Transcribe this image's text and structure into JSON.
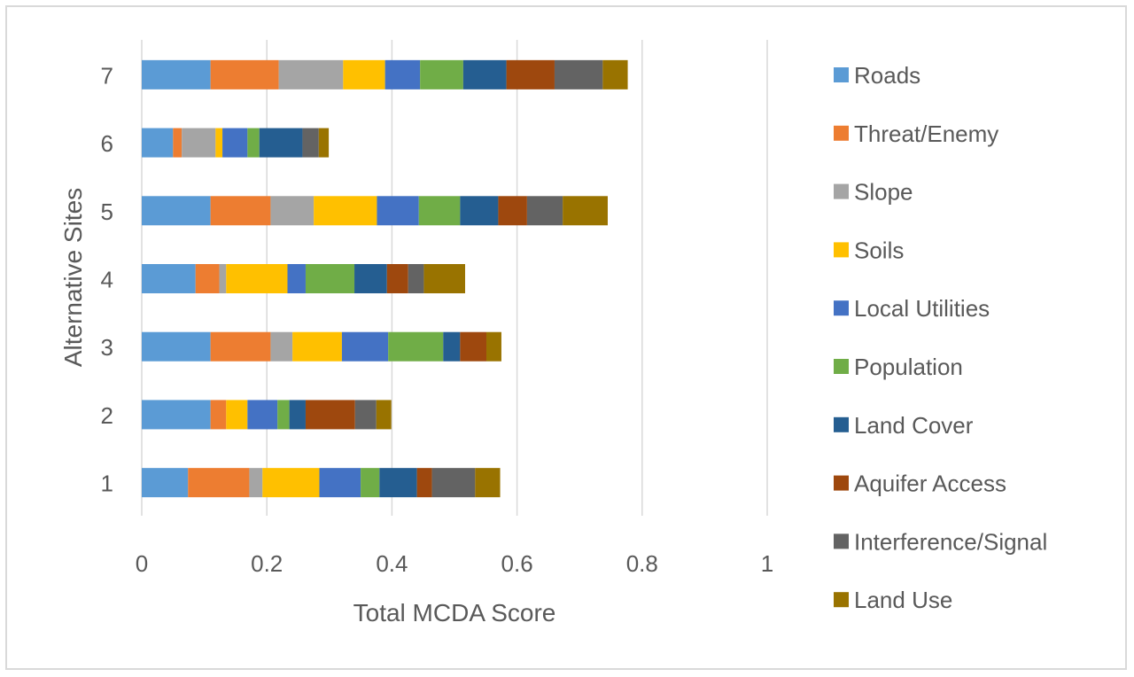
{
  "chart_data": {
    "type": "bar",
    "orientation": "horizontal",
    "stacked": true,
    "title": "",
    "xlabel": "Total MCDA Score",
    "ylabel": "Alternative Sites",
    "xlim": [
      0,
      1
    ],
    "xticks": [
      "0",
      "0.2",
      "0.4",
      "0.6",
      "0.8",
      "1"
    ],
    "grid": true,
    "legend_position": "right",
    "categories": [
      "1",
      "2",
      "3",
      "4",
      "5",
      "6",
      "7"
    ],
    "series": [
      {
        "name": "Roads",
        "color": "#5B9BD5",
        "values": [
          0.074,
          0.11,
          0.11,
          0.086,
          0.11,
          0.05,
          0.11
        ]
      },
      {
        "name": "Threat/Enemy",
        "color": "#ED7D31",
        "values": [
          0.098,
          0.025,
          0.096,
          0.038,
          0.096,
          0.014,
          0.109
        ]
      },
      {
        "name": "Slope",
        "color": "#A5A5A5",
        "values": [
          0.021,
          0.0,
          0.035,
          0.011,
          0.069,
          0.054,
          0.103
        ]
      },
      {
        "name": "Soils",
        "color": "#FFC000",
        "values": [
          0.091,
          0.034,
          0.079,
          0.098,
          0.101,
          0.011,
          0.067
        ]
      },
      {
        "name": "Local Utilities",
        "color": "#4472C4",
        "values": [
          0.066,
          0.048,
          0.074,
          0.029,
          0.067,
          0.04,
          0.056
        ]
      },
      {
        "name": "Population",
        "color": "#70AD47",
        "values": [
          0.03,
          0.019,
          0.088,
          0.078,
          0.066,
          0.019,
          0.069
        ]
      },
      {
        "name": "Land Cover",
        "color": "#255E91",
        "values": [
          0.06,
          0.026,
          0.027,
          0.052,
          0.061,
          0.069,
          0.069
        ]
      },
      {
        "name": "Aquifer Access",
        "color": "#9E480E",
        "values": [
          0.024,
          0.079,
          0.042,
          0.034,
          0.046,
          0.0,
          0.077
        ]
      },
      {
        "name": "Interference/Signal",
        "color": "#636363",
        "values": [
          0.069,
          0.034,
          0.0,
          0.025,
          0.057,
          0.026,
          0.077
        ]
      },
      {
        "name": "Land Use",
        "color": "#997300",
        "values": [
          0.04,
          0.024,
          0.024,
          0.066,
          0.072,
          0.016,
          0.04
        ]
      }
    ]
  }
}
